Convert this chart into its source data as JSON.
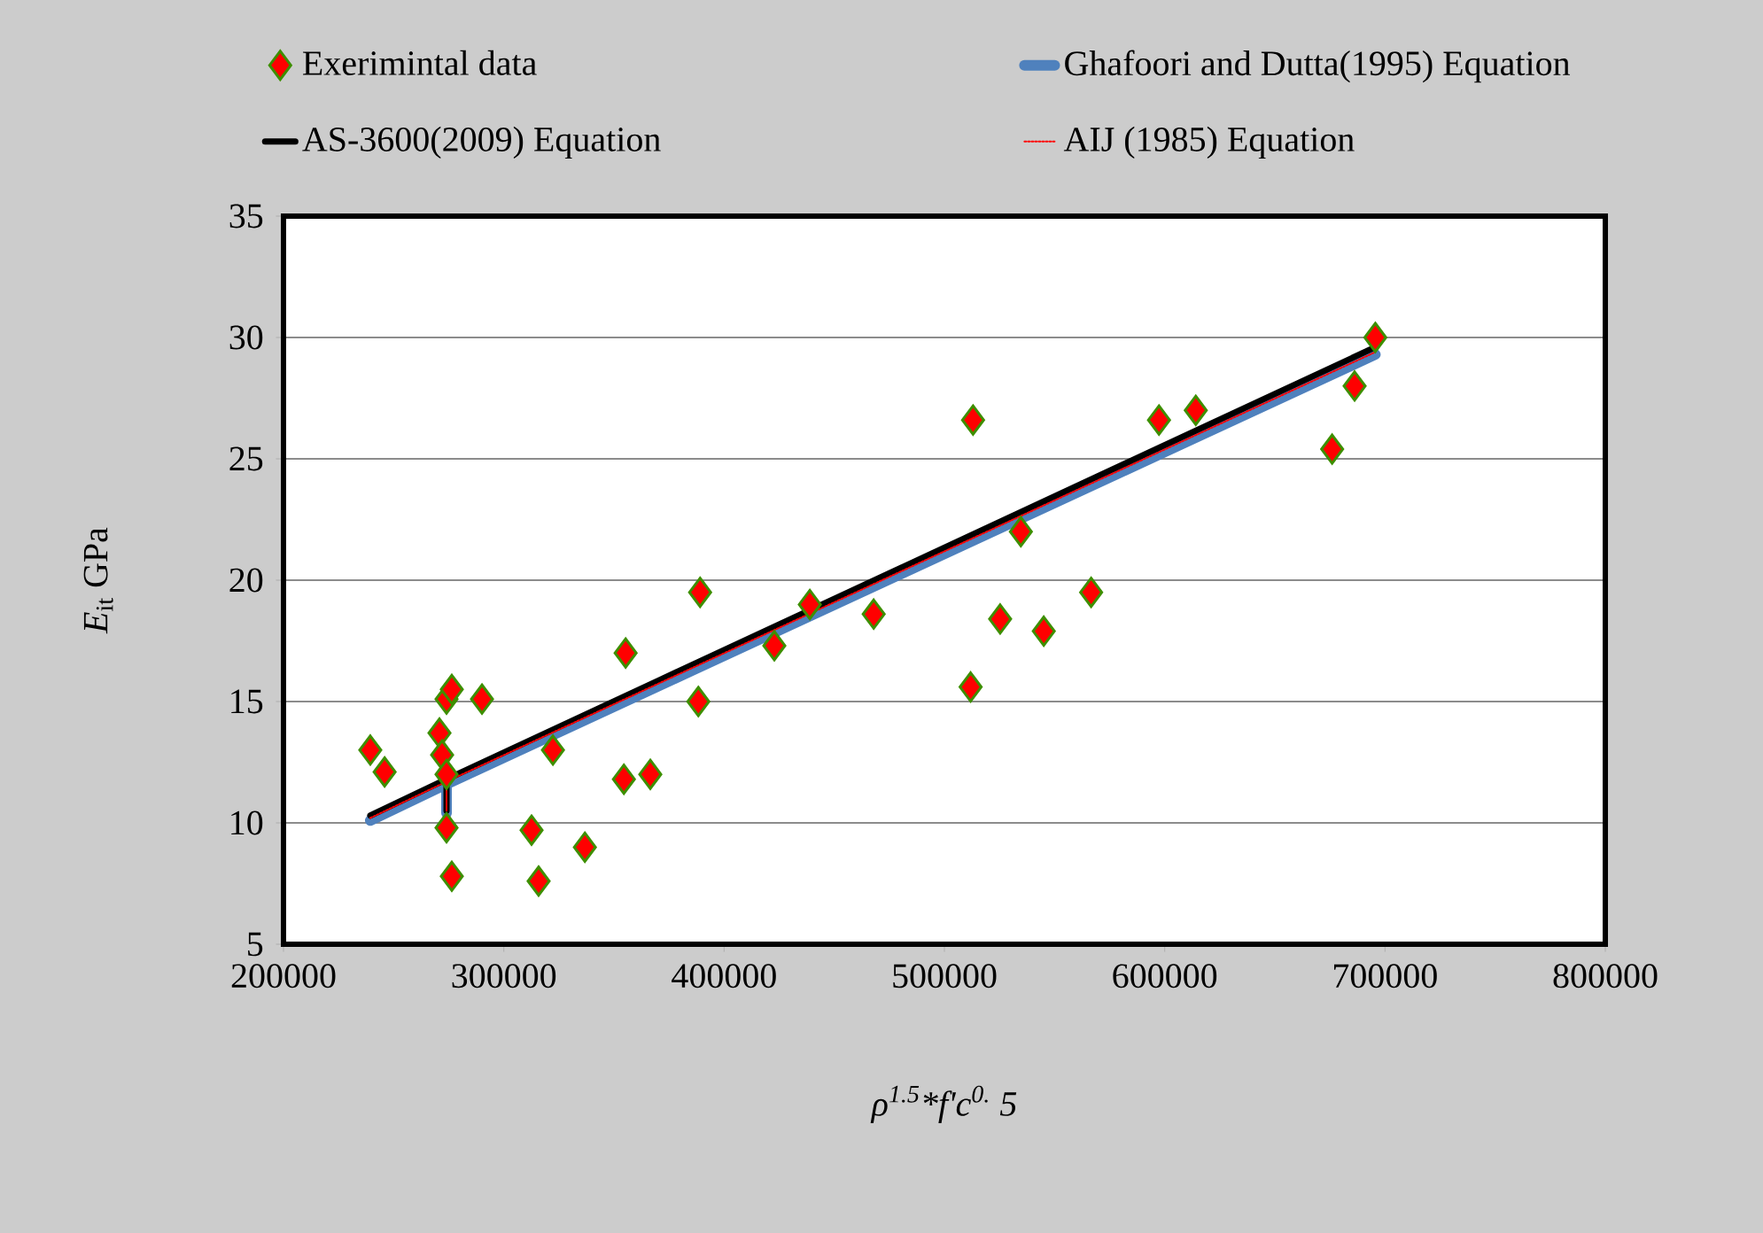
{
  "chart_data": {
    "type": "scatter",
    "xlabel": "ρ$^{1.5}$*f'c$^{0.}$ 5",
    "ylabel": "*E*$_{it}$ GPa",
    "xlim": [
      200000,
      800000
    ],
    "xticks": [
      200000,
      300000,
      400000,
      500000,
      600000,
      700000,
      800000
    ],
    "ylim": [
      5,
      35
    ],
    "yticks": [
      5,
      10,
      15,
      20,
      25,
      30,
      35
    ],
    "grid": "y",
    "legend": "top",
    "series": [
      {
        "name": "Exerimintal data",
        "marker": "diamond",
        "color": "#ff0000",
        "x": [
          239400,
          245900,
          274000,
          276400,
          290100,
          270800,
          272000,
          274000,
          274000,
          276400,
          322300,
          312600,
          315800,
          336800,
          355300,
          354500,
          366500,
          389100,
          388300,
          422800,
          438900,
          467900,
          513000,
          511900,
          525300,
          534700,
          545100,
          566600,
          597400,
          614100,
          676000,
          686200,
          695600
        ],
        "values": [
          13.0,
          12.1,
          15.1,
          15.5,
          15.1,
          13.7,
          12.8,
          12.0,
          9.8,
          7.8,
          13.0,
          9.7,
          7.6,
          9.0,
          17.0,
          11.8,
          12.0,
          19.5,
          15.0,
          17.3,
          19.0,
          18.6,
          26.6,
          15.6,
          18.4,
          22.0,
          17.9,
          19.5,
          26.6,
          27.0,
          25.4,
          28.0,
          30.0
        ]
      },
      {
        "name": "Ghafoori and  Dutta(1995) Equation",
        "type": "line",
        "line_style": "solid",
        "color": "#4f81bd",
        "x": [
          239400,
          274000,
          274000,
          274000,
          695600
        ],
        "values": [
          10.1,
          11.6,
          10.4,
          11.6,
          29.3
        ]
      },
      {
        "name": "AS-3600(2009) Equation",
        "type": "line",
        "line_style": "solid",
        "color": "#000000",
        "x": [
          239400,
          274000,
          274000,
          274000,
          695600
        ],
        "values": [
          10.3,
          11.8,
          10.5,
          11.8,
          29.6
        ]
      },
      {
        "name": "AIJ (1985) Equation",
        "type": "line",
        "line_style": "dotted",
        "color": "#ff0000",
        "x": [
          239400,
          274000,
          274000,
          274000,
          695600
        ],
        "values": [
          10.2,
          11.7,
          10.5,
          11.7,
          29.4
        ]
      }
    ]
  }
}
